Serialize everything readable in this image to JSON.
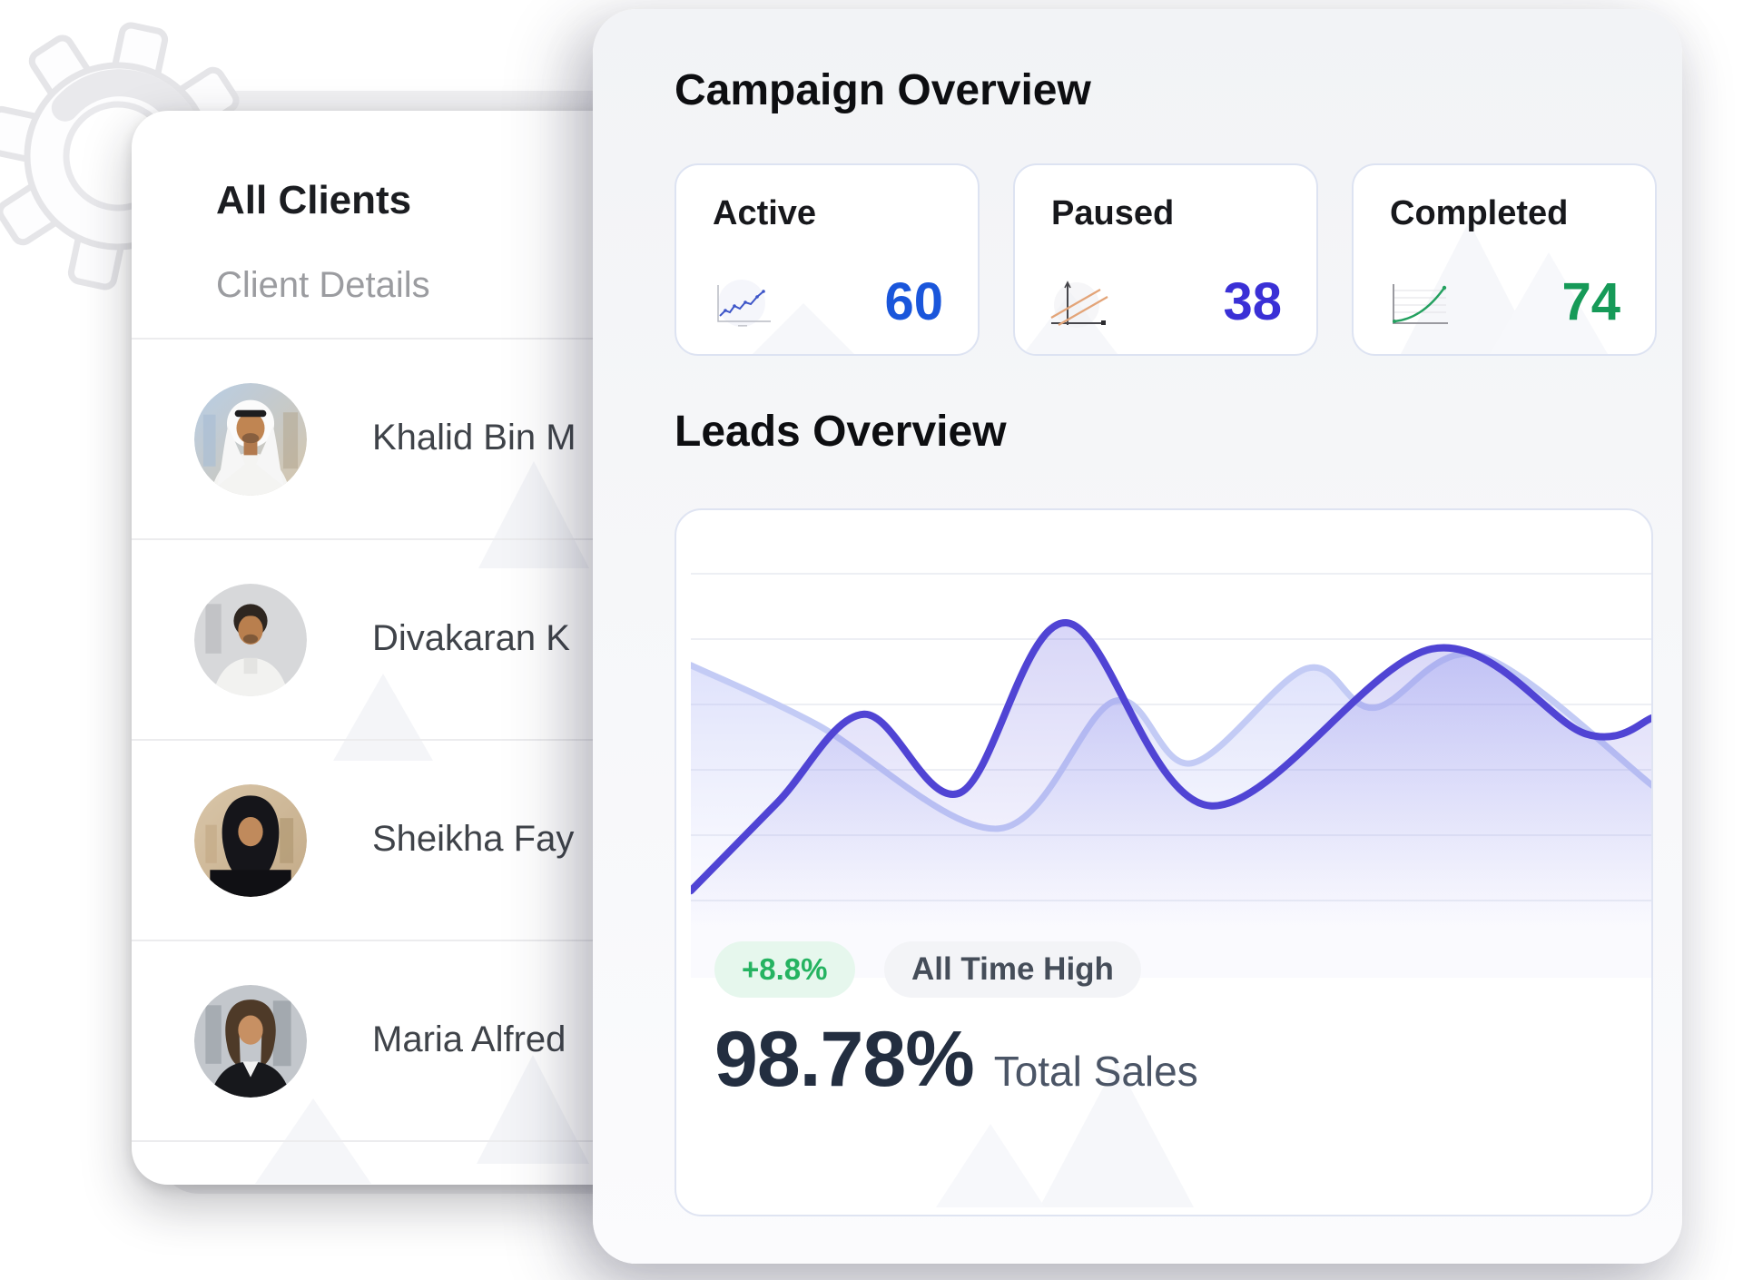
{
  "clients_panel": {
    "title": "All Clients",
    "subtitle": "Client Details",
    "clients": [
      {
        "name": "Khalid Bin M",
        "avatar": "khalid-avatar"
      },
      {
        "name": "Divakaran K",
        "avatar": "divakaran-avatar"
      },
      {
        "name": "Sheikha Fay",
        "avatar": "sheikha-avatar"
      },
      {
        "name": "Maria Alfred",
        "avatar": "maria-avatar"
      }
    ]
  },
  "campaign_overview": {
    "title": "Campaign Overview",
    "stats": [
      {
        "label": "Active",
        "value": "60",
        "color": "#1a56db",
        "icon": "mini-line-chart-icon"
      },
      {
        "label": "Paused",
        "value": "38",
        "color": "#3a30d6",
        "icon": "mini-parallel-lines-icon"
      },
      {
        "label": "Completed",
        "value": "74",
        "color": "#169a58",
        "icon": "mini-growth-curve-icon"
      }
    ]
  },
  "leads_overview": {
    "title": "Leads Overview",
    "badges": [
      {
        "label": "+8.8%",
        "text_color": "#25b361",
        "bg": "#e6f7ed"
      },
      {
        "label": "All Time High",
        "text_color": "#454d59",
        "bg": "#f3f4f7"
      }
    ],
    "metric_value": "98.78%",
    "metric_label": "Total Sales"
  },
  "chart_data": {
    "type": "area",
    "title": "Leads Overview",
    "x_range": [
      0,
      100
    ],
    "y_range": [
      0,
      100
    ],
    "gridlines": 6,
    "gridline_color": "#e7eaf1",
    "legend": "none",
    "series": [
      {
        "name": "leads-secondary",
        "color": "#c3cbf5",
        "points": [
          [
            0,
            28
          ],
          [
            13,
            46
          ],
          [
            32,
            78
          ],
          [
            44,
            39
          ],
          [
            52,
            58
          ],
          [
            64,
            29
          ],
          [
            71,
            41
          ],
          [
            82,
            25
          ],
          [
            100,
            65
          ]
        ]
      },
      {
        "name": "leads-primary",
        "color": "#5044d4",
        "points": [
          [
            0,
            97
          ],
          [
            9,
            70
          ],
          [
            18,
            43
          ],
          [
            28,
            67
          ],
          [
            39,
            15
          ],
          [
            54,
            71
          ],
          [
            77,
            23
          ],
          [
            93,
            49
          ],
          [
            100,
            44
          ]
        ]
      }
    ]
  }
}
